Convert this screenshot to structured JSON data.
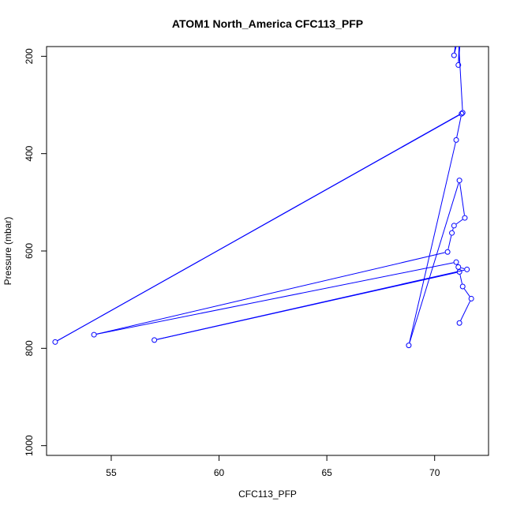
{
  "chart_data": {
    "type": "scatter",
    "title": "ATOM1 North_America CFC113_PFP",
    "xlabel": "CFC113_PFP",
    "ylabel": "Pressure (mbar)",
    "xlim": [
      52.0,
      72.5
    ],
    "ylim": [
      1020,
      180
    ],
    "y_reversed": true,
    "grid": false,
    "x_ticks": [
      55,
      60,
      65,
      70
    ],
    "y_ticks": [
      200,
      400,
      600,
      800,
      1000
    ],
    "line_color": "#0000ff",
    "marker": "open-circle",
    "points": [
      {
        "x": 71.2,
        "y": 160
      },
      {
        "x": 71.1,
        "y": 218
      },
      {
        "x": 71.2,
        "y": 100
      },
      {
        "x": 70.9,
        "y": 198
      },
      {
        "x": 71.1,
        "y": 160
      },
      {
        "x": 71.3,
        "y": 316
      },
      {
        "x": 52.4,
        "y": 787
      },
      {
        "x": 71.25,
        "y": 318
      },
      {
        "x": 71.0,
        "y": 372
      },
      {
        "x": 68.8,
        "y": 794
      },
      {
        "x": 71.15,
        "y": 455
      },
      {
        "x": 71.4,
        "y": 532
      },
      {
        "x": 70.9,
        "y": 548
      },
      {
        "x": 70.8,
        "y": 563
      },
      {
        "x": 70.6,
        "y": 602
      },
      {
        "x": 54.2,
        "y": 772
      },
      {
        "x": 71.0,
        "y": 623
      },
      {
        "x": 71.1,
        "y": 633
      },
      {
        "x": 71.5,
        "y": 638
      },
      {
        "x": 57.0,
        "y": 783
      },
      {
        "x": 71.15,
        "y": 643
      },
      {
        "x": 71.3,
        "y": 673
      },
      {
        "x": 71.7,
        "y": 698
      },
      {
        "x": 71.15,
        "y": 748
      }
    ]
  }
}
